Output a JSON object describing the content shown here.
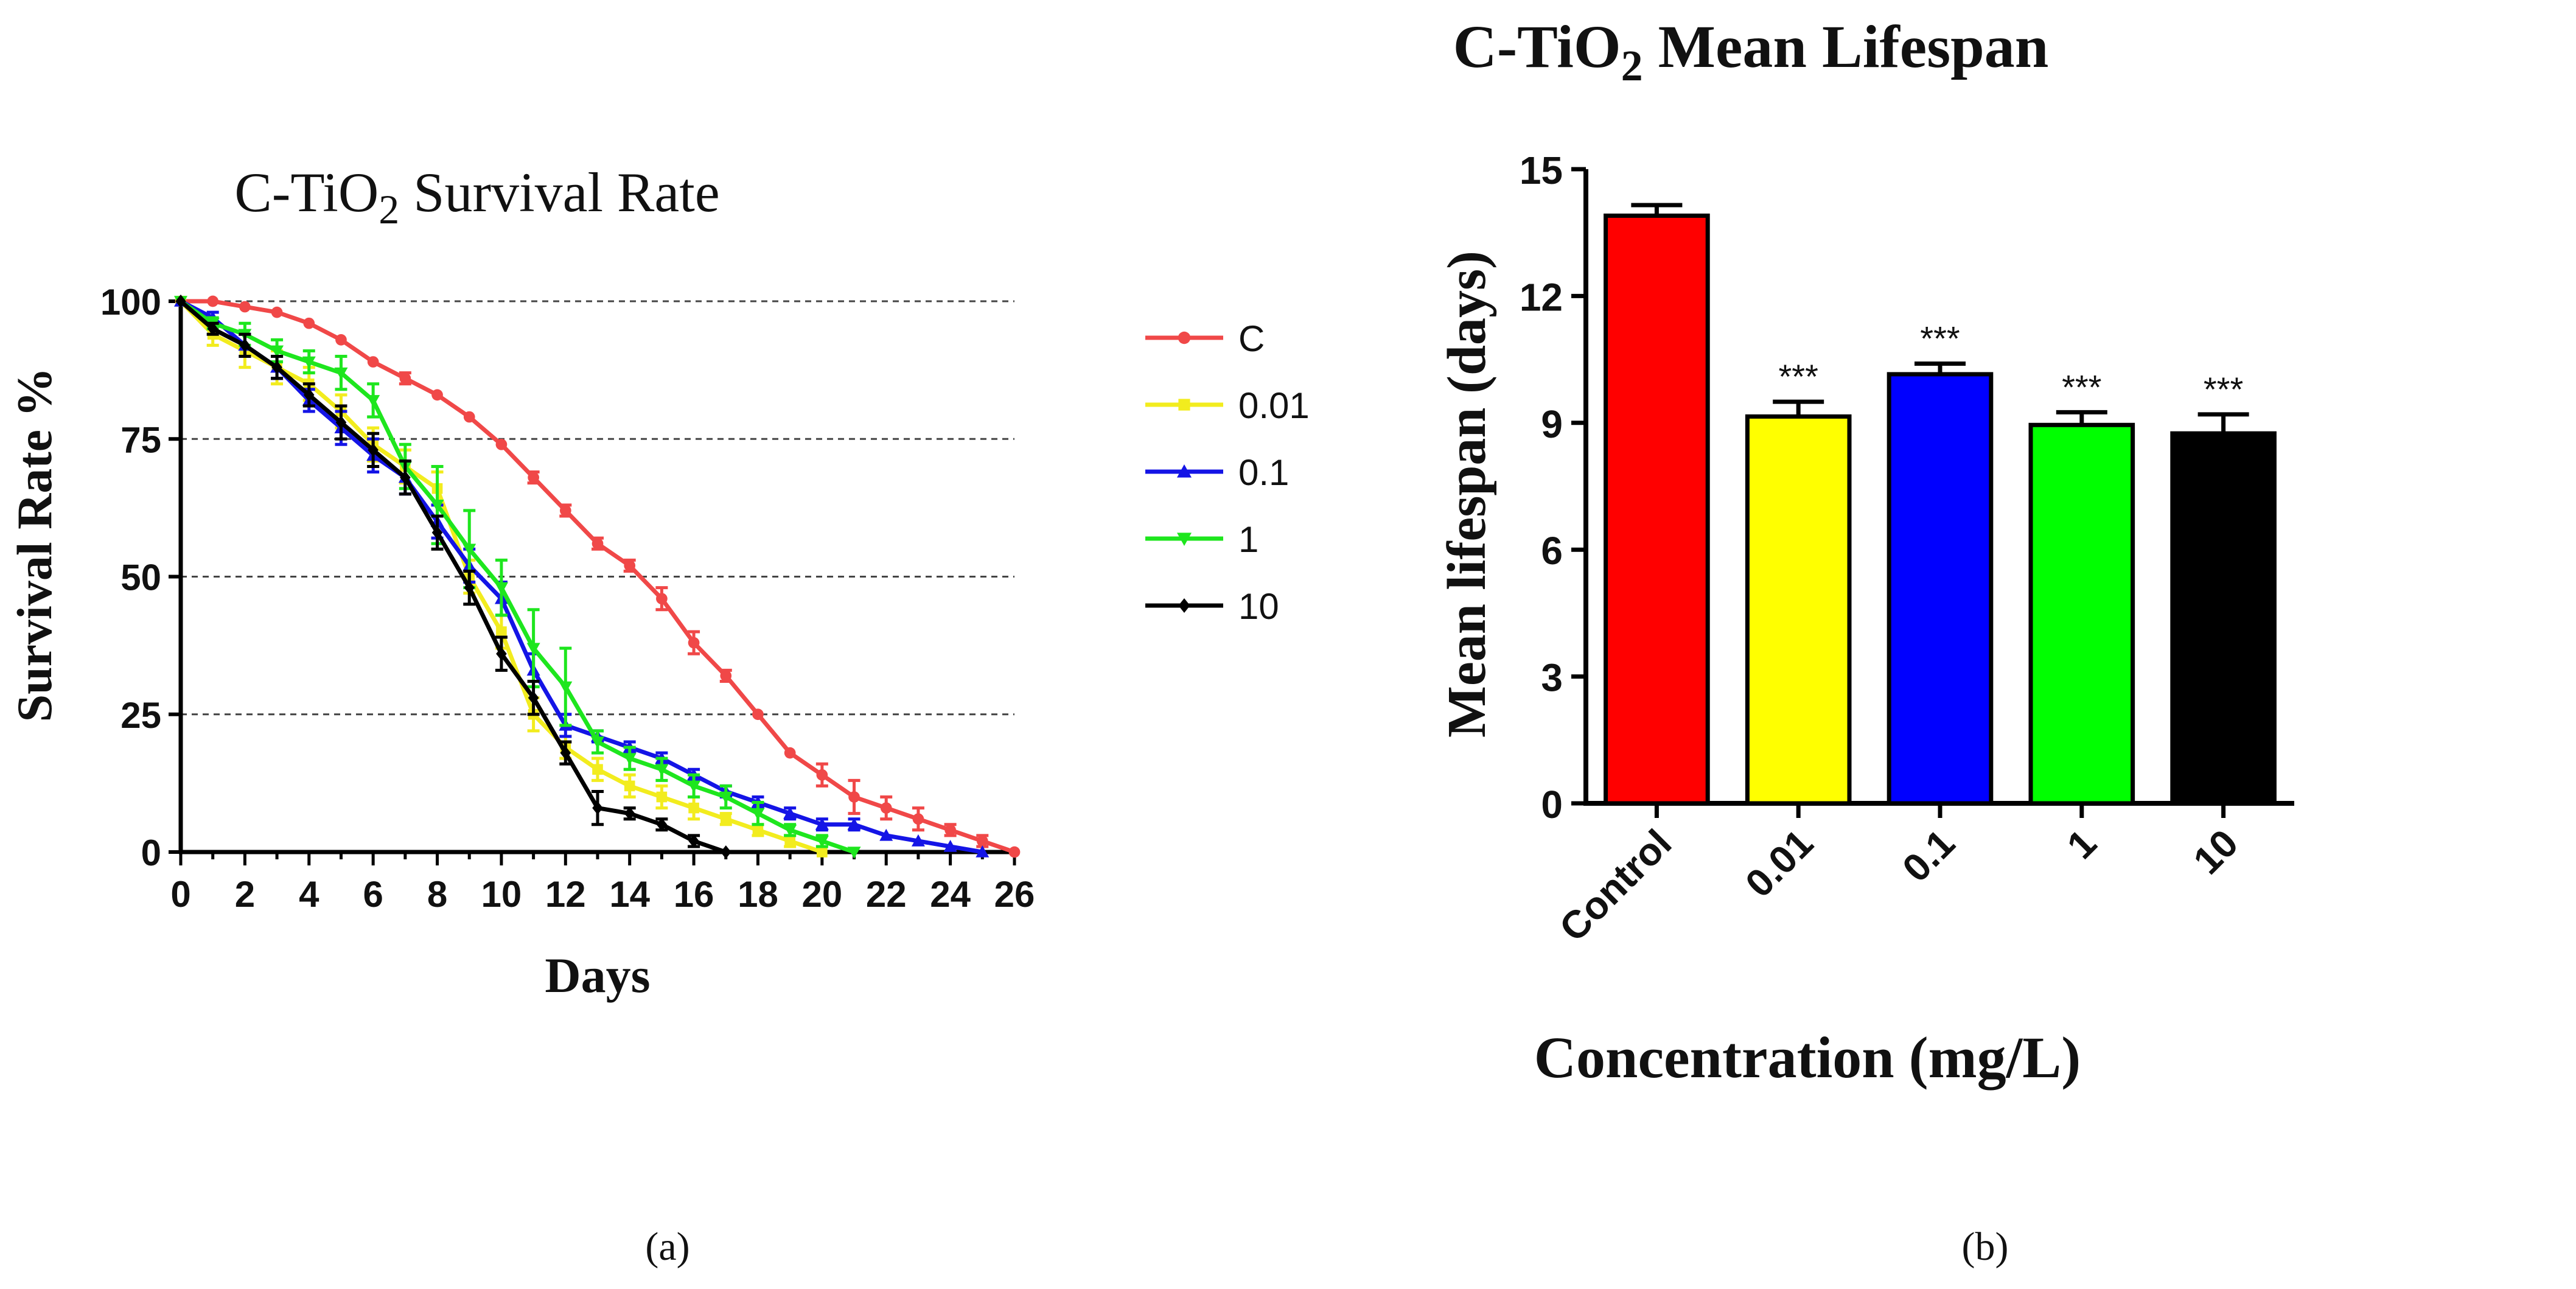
{
  "panel_labels": {
    "a": "(a)",
    "b": "(b)"
  },
  "chart_data": [
    {
      "type": "line",
      "title": "C-TiO",
      "title_sub": "2",
      "title_suffix": " Survival Rate",
      "xlabel": "Days",
      "ylabel": "Survival Rate %",
      "xlim": [
        0,
        26
      ],
      "ylim": [
        0,
        100
      ],
      "xticks": [
        0,
        2,
        4,
        6,
        8,
        10,
        12,
        14,
        16,
        18,
        20,
        22,
        24,
        26
      ],
      "yticks": [
        0,
        25,
        50,
        75,
        100
      ],
      "gridlines_y": [
        25,
        50,
        75,
        100
      ],
      "legend_position": "right",
      "series": [
        {
          "name": "C",
          "color": "#f04848",
          "marker": "circle",
          "x": [
            0,
            1,
            2,
            3,
            4,
            5,
            6,
            7,
            8,
            9,
            10,
            11,
            12,
            13,
            14,
            15,
            16,
            17,
            18,
            19,
            20,
            21,
            22,
            23,
            24,
            25,
            26
          ],
          "y": [
            100,
            100,
            99,
            98,
            96,
            93,
            89,
            86,
            83,
            79,
            74,
            68,
            62,
            56,
            52,
            46,
            38,
            32,
            25,
            18,
            14,
            10,
            8,
            6,
            4,
            2,
            0
          ],
          "err": [
            0,
            0,
            0,
            0,
            0,
            0,
            0,
            1,
            0,
            0,
            0,
            1,
            1,
            1,
            1,
            2,
            2,
            1,
            0,
            0,
            2,
            3,
            2,
            2,
            1,
            1,
            0
          ]
        },
        {
          "name": "0.01",
          "color": "#f2ec1e",
          "marker": "square",
          "x": [
            0,
            1,
            2,
            3,
            4,
            5,
            6,
            7,
            8,
            9,
            10,
            11,
            12,
            13,
            14,
            15,
            16,
            17,
            18,
            19,
            20
          ],
          "y": [
            100,
            94,
            91,
            88,
            85,
            80,
            74,
            70,
            66,
            50,
            40,
            25,
            19,
            15,
            12,
            10,
            8,
            6,
            4,
            2,
            0
          ],
          "err": [
            0,
            2,
            3,
            3,
            3,
            3,
            3,
            3,
            3,
            3,
            3,
            3,
            2,
            2,
            2,
            2,
            2,
            1,
            1,
            1,
            0
          ]
        },
        {
          "name": "0.1",
          "color": "#1414e6",
          "marker": "triangle",
          "x": [
            0,
            1,
            2,
            3,
            4,
            5,
            6,
            7,
            8,
            9,
            10,
            11,
            12,
            13,
            14,
            15,
            16,
            17,
            18,
            19,
            20,
            21,
            22,
            23,
            24,
            25
          ],
          "y": [
            100,
            97,
            92,
            88,
            82,
            77,
            72,
            68,
            60,
            52,
            46,
            33,
            23,
            21,
            19,
            17,
            14,
            11,
            9,
            7,
            5,
            5,
            3,
            2,
            1,
            0
          ],
          "err": [
            0,
            1,
            2,
            2,
            2,
            3,
            3,
            3,
            3,
            3,
            3,
            3,
            2,
            1,
            1,
            1,
            1,
            1,
            1,
            1,
            1,
            1,
            0,
            0,
            0,
            0
          ]
        },
        {
          "name": "1",
          "color": "#1ee61e",
          "marker": "triangle-down",
          "x": [
            0,
            1,
            2,
            3,
            4,
            5,
            6,
            7,
            8,
            9,
            10,
            11,
            12,
            13,
            14,
            15,
            16,
            17,
            18,
            19,
            20,
            21
          ],
          "y": [
            100,
            96,
            94,
            91,
            89,
            87,
            82,
            70,
            63,
            55,
            48,
            37,
            30,
            20,
            17,
            15,
            12,
            10,
            7,
            4,
            2,
            0
          ],
          "err": [
            0,
            1,
            2,
            2,
            2,
            3,
            3,
            4,
            7,
            7,
            5,
            7,
            7,
            2,
            2,
            2,
            2,
            2,
            2,
            1,
            1,
            0
          ]
        },
        {
          "name": "10",
          "color": "#000000",
          "marker": "diamond",
          "x": [
            0,
            1,
            2,
            3,
            4,
            5,
            6,
            7,
            8,
            9,
            10,
            11,
            12,
            13,
            14,
            15,
            16,
            17
          ],
          "y": [
            100,
            95,
            92,
            88,
            83,
            78,
            73,
            68,
            58,
            48,
            36,
            28,
            18,
            8,
            7,
            5,
            2,
            0
          ],
          "err": [
            0,
            1,
            2,
            2,
            2,
            3,
            3,
            3,
            3,
            3,
            3,
            3,
            2,
            3,
            1,
            1,
            1,
            0
          ]
        }
      ]
    },
    {
      "type": "bar",
      "title": "C-TiO",
      "title_sub": "2",
      "title_suffix": " Mean Lifespan",
      "xlabel": "Concentration (mg/L)",
      "ylabel": "Mean lifespan (days)",
      "ylim": [
        0,
        15
      ],
      "yticks": [
        0,
        3,
        6,
        9,
        12,
        15
      ],
      "categories": [
        "Control",
        "0.01",
        "0.1",
        "1",
        "10"
      ],
      "values": [
        13.9,
        9.15,
        10.15,
        8.95,
        8.75
      ],
      "err": [
        0.25,
        0.35,
        0.25,
        0.3,
        0.45
      ],
      "colors": [
        "#ff0000",
        "#ffff00",
        "#0000ff",
        "#00ff00",
        "#000000"
      ],
      "annotations": [
        "",
        "***",
        "***",
        "***",
        "***"
      ]
    }
  ]
}
